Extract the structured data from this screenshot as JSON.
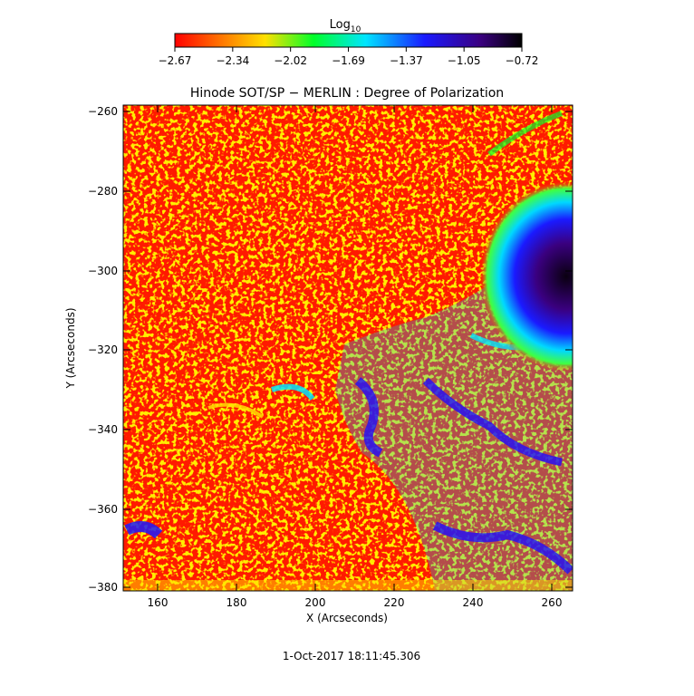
{
  "colorbar": {
    "label_main": "Log",
    "label_sub": "10",
    "ticks": [
      "−2.67",
      "−2.34",
      "−2.02",
      "−1.69",
      "−1.37",
      "−1.05",
      "−0.72"
    ],
    "colors": [
      "#ff0000",
      "#ff6a00",
      "#ffe000",
      "#00ff2a",
      "#00e5ff",
      "#1a1aff",
      "#3a0080",
      "#000000"
    ]
  },
  "plot": {
    "title": "Hinode SOT/SP − MERLIN : Degree of Polarization",
    "xlabel": "X (Arcseconds)",
    "ylabel": "Y (Arcseconds)",
    "xticks": [
      "160",
      "180",
      "200",
      "220",
      "240",
      "260"
    ],
    "yticks": [
      "−260",
      "−280",
      "−300",
      "−320",
      "−340",
      "−360",
      "−380"
    ]
  },
  "timestamp": "1-Oct-2017 18:11:45.306"
}
